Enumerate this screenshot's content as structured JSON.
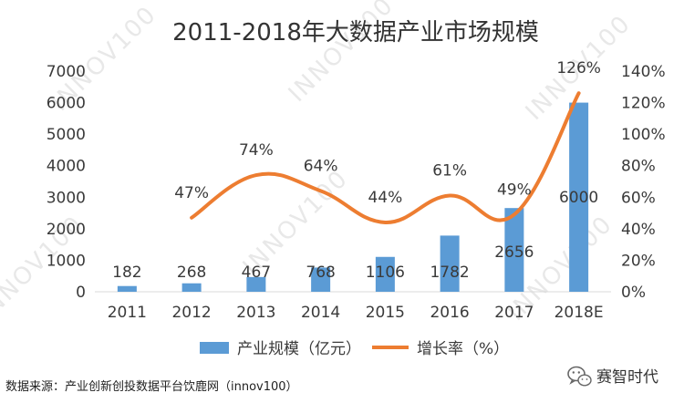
{
  "chart_data": {
    "type": "bar",
    "title": "2011-2018年大数据产业市场规模",
    "categories": [
      "2011",
      "2012",
      "2013",
      "2014",
      "2015",
      "2016",
      "2017",
      "2018E"
    ],
    "series": [
      {
        "name": "产业规模（亿元）",
        "type": "bar",
        "axis": "left",
        "color": "#5b9bd5",
        "values": [
          182,
          268,
          467,
          768,
          1106,
          1782,
          2656,
          6000
        ],
        "labels": [
          "182",
          "268",
          "467",
          "768",
          "1106",
          "1782",
          "2656",
          "6000"
        ]
      },
      {
        "name": "增长率（%）",
        "type": "line",
        "axis": "right",
        "color": "#ed7d31",
        "values": [
          null,
          47,
          74,
          64,
          44,
          61,
          49,
          126
        ],
        "labels": [
          "",
          "47%",
          "74%",
          "64%",
          "44%",
          "61%",
          "49%",
          "126%"
        ]
      }
    ],
    "y_left": {
      "ylim": [
        0,
        7000
      ],
      "ticks": [
        "0",
        "1000",
        "2000",
        "3000",
        "4000",
        "5000",
        "6000",
        "7000"
      ]
    },
    "y_right": {
      "ylim": [
        0,
        140
      ],
      "ticks": [
        "0%",
        "20%",
        "40%",
        "60%",
        "80%",
        "100%",
        "120%",
        "140%"
      ]
    },
    "grid": false,
    "legend": "bottom"
  },
  "source_note": "数据来源：产业创新创投数据平台饮鹿网（innov100）",
  "brand": {
    "name": "赛智时代",
    "icon": "wechat-icon"
  },
  "watermark": "INNOV100"
}
